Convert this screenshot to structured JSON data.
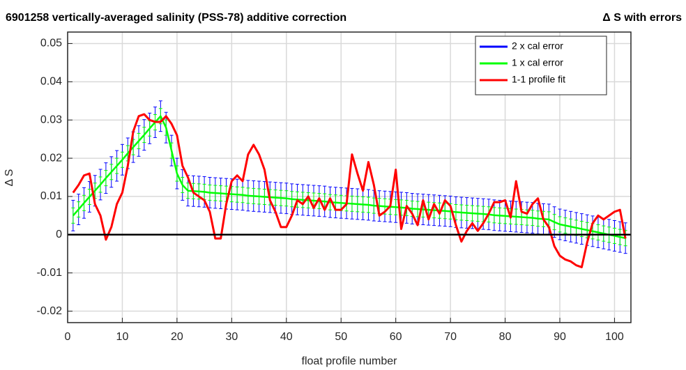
{
  "chart_data": {
    "type": "line",
    "title": "6901258 vertically-averaged salinity (PSS-78) additive correction",
    "subtitle": "Δ S with errors",
    "x_label": "float profile number",
    "y_label": "Δ S",
    "xlim": [
      0,
      103
    ],
    "ylim": [
      -0.023,
      0.053
    ],
    "xticks": [
      0,
      10,
      20,
      30,
      40,
      50,
      60,
      70,
      80,
      90,
      100
    ],
    "yticks": [
      -0.02,
      -0.01,
      0,
      0.01,
      0.02,
      0.03,
      0.04,
      0.05
    ],
    "grid": true,
    "legend": "upper right",
    "reference_line": 0,
    "x": [
      1,
      2,
      3,
      4,
      5,
      6,
      7,
      8,
      9,
      10,
      11,
      12,
      13,
      14,
      15,
      16,
      17,
      18,
      19,
      20,
      21,
      22,
      23,
      24,
      25,
      26,
      27,
      28,
      29,
      30,
      31,
      32,
      33,
      34,
      35,
      36,
      37,
      38,
      39,
      40,
      41,
      42,
      43,
      44,
      45,
      46,
      47,
      48,
      49,
      50,
      51,
      52,
      53,
      54,
      55,
      56,
      57,
      58,
      59,
      60,
      61,
      62,
      63,
      64,
      65,
      66,
      67,
      68,
      69,
      70,
      71,
      72,
      73,
      74,
      75,
      76,
      77,
      78,
      79,
      80,
      81,
      82,
      83,
      84,
      85,
      86,
      87,
      88,
      89,
      90,
      91,
      92,
      93,
      94,
      95,
      96,
      97,
      98,
      99,
      100,
      101,
      102
    ],
    "series": [
      {
        "name": "2 x cal error",
        "color": "#0000ff",
        "error": 0.004,
        "values": [
          0.005,
          0.0066,
          0.0083,
          0.0099,
          0.0115,
          0.0131,
          0.0148,
          0.0164,
          0.018,
          0.0196,
          0.0213,
          0.0229,
          0.0245,
          0.0261,
          0.0278,
          0.0294,
          0.031,
          0.028,
          0.022,
          0.016,
          0.013,
          0.0115,
          0.0114,
          0.0113,
          0.0112,
          0.011,
          0.0109,
          0.0108,
          0.0107,
          0.0106,
          0.0105,
          0.0104,
          0.0102,
          0.0101,
          0.01,
          0.0099,
          0.0098,
          0.0097,
          0.0096,
          0.0095,
          0.0093,
          0.0092,
          0.0091,
          0.009,
          0.0089,
          0.0088,
          0.0087,
          0.0085,
          0.0084,
          0.0083,
          0.0082,
          0.0081,
          0.008,
          0.0079,
          0.0078,
          0.0076,
          0.0075,
          0.0074,
          0.0073,
          0.0072,
          0.0071,
          0.007,
          0.0068,
          0.0067,
          0.0066,
          0.0065,
          0.0064,
          0.0063,
          0.0062,
          0.0061,
          0.0059,
          0.0058,
          0.0057,
          0.0056,
          0.0055,
          0.0054,
          0.0053,
          0.0051,
          0.005,
          0.0049,
          0.0048,
          0.0047,
          0.0046,
          0.0045,
          0.0044,
          0.0042,
          0.0041,
          0.004,
          0.0033,
          0.0027,
          0.0024,
          0.0021,
          0.0018,
          0.0015,
          0.0012,
          0.0009,
          0.0006,
          0.0003,
          0,
          -0.0003,
          -0.0006,
          -0.0009
        ]
      },
      {
        "name": "1 x cal error",
        "color": "#00ff00",
        "error": 0.002,
        "values": [
          0.005,
          0.0066,
          0.0083,
          0.0099,
          0.0115,
          0.0131,
          0.0148,
          0.0164,
          0.018,
          0.0196,
          0.0213,
          0.0229,
          0.0245,
          0.0261,
          0.0278,
          0.0294,
          0.031,
          0.028,
          0.022,
          0.016,
          0.013,
          0.0115,
          0.0114,
          0.0113,
          0.0112,
          0.011,
          0.0109,
          0.0108,
          0.0107,
          0.0106,
          0.0105,
          0.0104,
          0.0102,
          0.0101,
          0.01,
          0.0099,
          0.0098,
          0.0097,
          0.0096,
          0.0095,
          0.0093,
          0.0092,
          0.0091,
          0.009,
          0.0089,
          0.0088,
          0.0087,
          0.0085,
          0.0084,
          0.0083,
          0.0082,
          0.0081,
          0.008,
          0.0079,
          0.0078,
          0.0076,
          0.0075,
          0.0074,
          0.0073,
          0.0072,
          0.0071,
          0.007,
          0.0068,
          0.0067,
          0.0066,
          0.0065,
          0.0064,
          0.0063,
          0.0062,
          0.0061,
          0.0059,
          0.0058,
          0.0057,
          0.0056,
          0.0055,
          0.0054,
          0.0053,
          0.0051,
          0.005,
          0.0049,
          0.0048,
          0.0047,
          0.0046,
          0.0045,
          0.0044,
          0.0042,
          0.0041,
          0.004,
          0.0033,
          0.0027,
          0.0024,
          0.0021,
          0.0018,
          0.0015,
          0.0012,
          0.0009,
          0.0006,
          0.0003,
          0,
          -0.0003,
          -0.0006,
          -0.0009
        ]
      },
      {
        "name": "1-1 profile fit",
        "color": "#ff0000",
        "values": [
          0.011,
          0.013,
          0.0155,
          0.016,
          0.008,
          0.005,
          -0.0013,
          0.002,
          0.008,
          0.011,
          0.018,
          0.027,
          0.031,
          0.0315,
          0.03,
          0.0295,
          0.0295,
          0.031,
          0.029,
          0.026,
          0.018,
          0.015,
          0.011,
          0.01,
          0.009,
          0.006,
          -0.001,
          -0.001,
          0.008,
          0.014,
          0.0155,
          0.014,
          0.021,
          0.0235,
          0.021,
          0.017,
          0.009,
          0.006,
          0.002,
          0.002,
          0.005,
          0.009,
          0.008,
          0.01,
          0.007,
          0.0095,
          0.0065,
          0.0095,
          0.0065,
          0.0065,
          0.008,
          0.021,
          0.016,
          0.0115,
          0.019,
          0.013,
          0.005,
          0.006,
          0.0075,
          0.017,
          0.0015,
          0.0075,
          0.0055,
          0.0025,
          0.009,
          0.004,
          0.008,
          0.0055,
          0.009,
          0.0075,
          0.0025,
          -0.0018,
          0.001,
          0.003,
          0.001,
          0.003,
          0.0055,
          0.0085,
          0.0085,
          0.009,
          0.0045,
          0.014,
          0.006,
          0.0055,
          0.008,
          0.0095,
          0.004,
          0.002,
          -0.003,
          -0.0055,
          -0.0065,
          -0.007,
          -0.008,
          -0.0085,
          -0.002,
          0.003,
          0.005,
          0.004,
          0.005,
          0.006,
          0.0065,
          -0.001
        ]
      }
    ]
  }
}
